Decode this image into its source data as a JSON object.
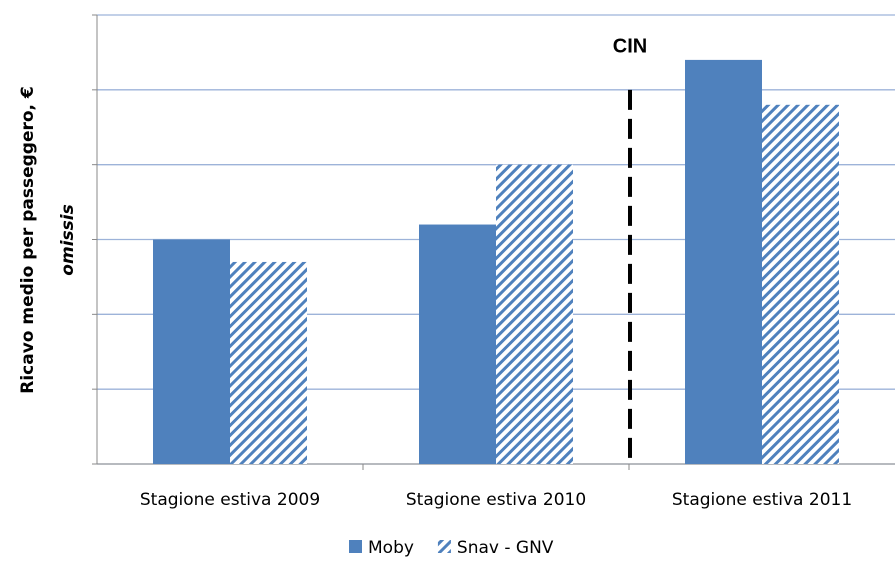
{
  "chart_data": {
    "type": "bar",
    "y_label": "Ricavo medio per passeggero, €",
    "y_label_note": "omissis",
    "annotation": "CIN",
    "categories": [
      "Stagione estiva 2009",
      "Stagione estiva 2010",
      "Stagione estiva 2011"
    ],
    "series": [
      {
        "name": "Moby",
        "color": "#4f81bd",
        "pattern": "solid",
        "values": [
          3.0,
          3.2,
          5.4
        ]
      },
      {
        "name": "Snav - GNV",
        "color": "#4f81bd",
        "pattern": "hatch",
        "values": [
          2.7,
          4.0,
          4.8
        ]
      }
    ],
    "ylim": [
      0,
      6
    ],
    "yticks": [
      0,
      1,
      2,
      3,
      4,
      5,
      6
    ],
    "grid": true
  }
}
